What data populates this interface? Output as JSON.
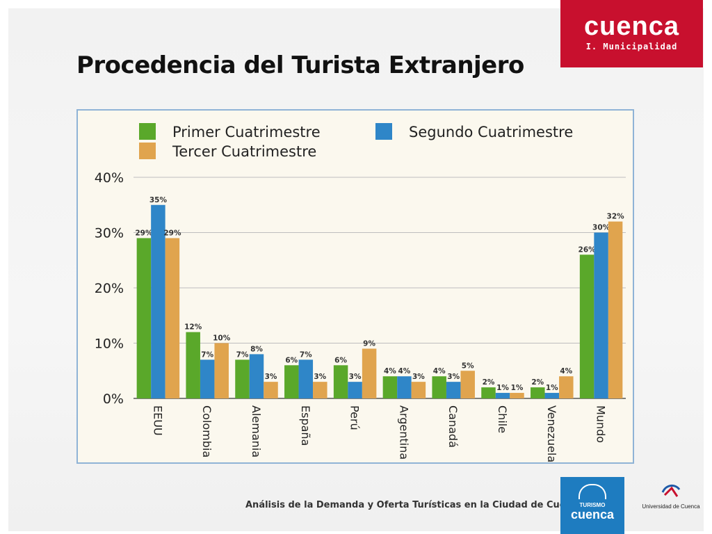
{
  "slide": {
    "title": "Procedencia del Turista Extranjero",
    "footer": "Análisis de la Demanda y Oferta Turísticas en la Ciudad de Cuenca"
  },
  "logos": {
    "cuenca": {
      "brand": "cuenca",
      "subtitle": "I. Municipalidad",
      "color": "#c8102e"
    },
    "turismo": {
      "small": "TURISMO",
      "brand": "cuenca",
      "color": "#1e7cc0"
    },
    "universidad": {
      "name": "Universidad de Cuenca"
    }
  },
  "chart_data": {
    "type": "bar",
    "categories": [
      "EEUU",
      "Colombia",
      "Alemania",
      "España",
      "Perú",
      "Argentina",
      "Canadá",
      "Chile",
      "Venezuela",
      "Mundo"
    ],
    "series": [
      {
        "name": "Primer Cuatrimestre",
        "color": "#5aa82a",
        "values": [
          29,
          12,
          7,
          6,
          6,
          4,
          4,
          2,
          2,
          26
        ]
      },
      {
        "name": "Segundo Cuatrimestre",
        "color": "#2f86c8",
        "values": [
          35,
          7,
          8,
          7,
          3,
          4,
          3,
          1,
          1,
          30
        ]
      },
      {
        "name": "Tercer Cuatrimestre",
        "color": "#e0a44e",
        "values": [
          29,
          10,
          3,
          3,
          9,
          3,
          5,
          1,
          4,
          32
        ]
      }
    ],
    "y_ticks": [
      "0%",
      "10%",
      "20%",
      "30%",
      "40%"
    ],
    "ylim": [
      0,
      40
    ],
    "value_suffix": "%",
    "legend_position": "top",
    "grid": true
  }
}
